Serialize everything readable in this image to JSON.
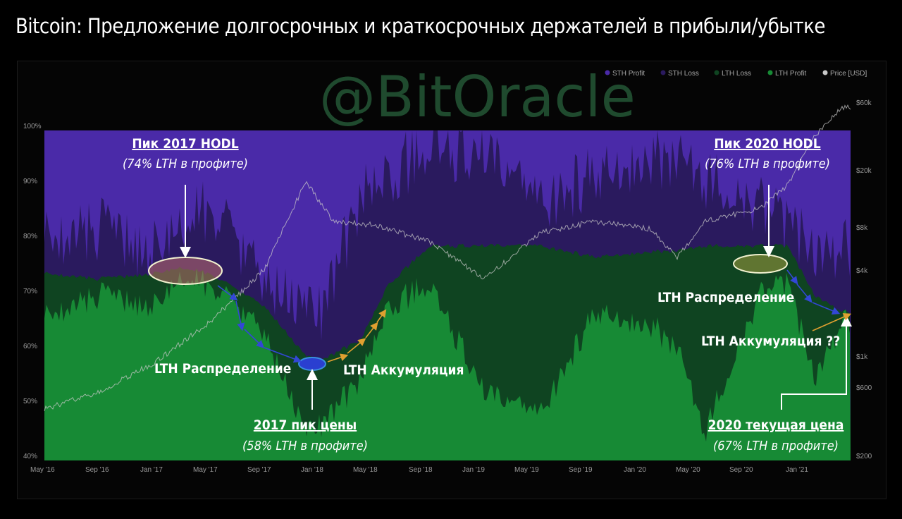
{
  "title": "Bitcoin: Предложение долгосрочных и краткосрочных держателей в прибыли/убытке",
  "watermark": "@BitOracle",
  "colors": {
    "sth_profit": "#4a2aa8",
    "sth_loss": "#2a1a5e",
    "lth_loss": "#0f4421",
    "lth_profit": "#178a35",
    "price": "#c8c8c8",
    "arrow_blue": "#3347d6",
    "arrow_orange": "#e0a030"
  },
  "chart_data": {
    "type": "area",
    "x_ticks": [
      "May '16",
      "Sep '16",
      "Jan '17",
      "May '17",
      "Sep '17",
      "Jan '18",
      "May '18",
      "Sep '18",
      "Jan '19",
      "May '19",
      "Sep '19",
      "Jan '20",
      "May '20",
      "Sep '20",
      "Jan '21"
    ],
    "y_left_ticks": [
      "100%",
      "90%",
      "80%",
      "70%",
      "60%",
      "50%",
      "40%"
    ],
    "y_left_range": [
      40,
      100
    ],
    "y_right_ticks": [
      "$60k",
      "$20k",
      "$8k",
      "$4k",
      "$1k",
      "$600",
      "$200"
    ],
    "y_right_scale": "log",
    "legend": [
      "STH Profit",
      "STH Loss",
      "LTH Loss",
      "LTH Profit",
      "Price [USD]"
    ],
    "legend_position": "top-right",
    "series": [
      {
        "name": "LTH Profit",
        "x": [
          "May '16",
          "Sep '16",
          "Jan '17",
          "Mar '17",
          "May '17",
          "Sep '17",
          "Dec '17",
          "Jan '18",
          "Apr '18",
          "Jun '18",
          "Sep '18",
          "Jan '19",
          "May '19",
          "Sep '19",
          "Jan '20",
          "Mar '20",
          "May '20",
          "Sep '20",
          "Nov '20",
          "Jan '21",
          "Mar '21"
        ],
        "values": [
          66,
          70,
          68,
          73,
          72,
          63,
          45,
          46,
          55,
          68,
          72,
          52,
          48,
          67,
          65,
          60,
          45,
          70,
          72,
          55,
          65
        ]
      },
      {
        "name": "LTH Loss",
        "x": [
          "May '16",
          "Sep '16",
          "Jan '17",
          "Mar '17",
          "May '17",
          "Sep '17",
          "Dec '17",
          "Jan '18",
          "Apr '18",
          "Jun '18",
          "Sep '18",
          "Jan '19",
          "May '19",
          "Sep '19",
          "Jan '20",
          "Mar '20",
          "May '20",
          "Sep '20",
          "Nov '20",
          "Jan '21",
          "Mar '21"
        ],
        "values": [
          74,
          73,
          74,
          75,
          74,
          68,
          59,
          58,
          62,
          72,
          79,
          79,
          79,
          77,
          78,
          78,
          79,
          79,
          79,
          70,
          67
        ]
      },
      {
        "name": "STH Loss",
        "x": [
          "May '16",
          "Sep '16",
          "Jan '17",
          "May '17",
          "Sep '17",
          "Jan '18",
          "Apr '18",
          "Sep '18",
          "Jan '19",
          "May '19",
          "Sep '19",
          "Jan '20",
          "May '20",
          "Sep '20",
          "Jan '21"
        ],
        "values": [
          80,
          82,
          78,
          86,
          72,
          66,
          88,
          97,
          95,
          86,
          92,
          96,
          91,
          86,
          78
        ]
      },
      {
        "name": "STH Profit",
        "x": [
          "May '16",
          "Jan '21"
        ],
        "values": [
          100,
          100
        ]
      },
      {
        "name": "Price [USD]",
        "x": [
          "May '16",
          "Sep '16",
          "Jan '17",
          "May '17",
          "Sep '17",
          "Dec '17",
          "Feb '18",
          "May '18",
          "Sep '18",
          "Jan '19",
          "May '19",
          "Sep '19",
          "Jan '20",
          "Mar '20",
          "May '20",
          "Sep '20",
          "Nov '20",
          "Jan '21",
          "Mar '21"
        ],
        "values": [
          450,
          600,
          950,
          1800,
          4200,
          17000,
          9000,
          8500,
          6500,
          3600,
          7500,
          9000,
          8000,
          5000,
          9000,
          11000,
          16000,
          35000,
          55000
        ]
      }
    ],
    "annotations": [
      {
        "title": "Пик 2017 HODL",
        "subtitle": "(74% LTH в профите)"
      },
      {
        "title": "Пик 2020 HODL",
        "subtitle": "(76% LTH в профите)"
      },
      {
        "title": "LTH Распределение"
      },
      {
        "title": "LTH Аккумуляция"
      },
      {
        "title": "2017 пик цены",
        "subtitle": "(58% LTH в профите)"
      },
      {
        "title": "LTH Распределение"
      },
      {
        "title": "LTH Аккумуляция ??"
      },
      {
        "title": "2020 текущая цена",
        "subtitle": "(67% LTH в профите)"
      }
    ]
  }
}
